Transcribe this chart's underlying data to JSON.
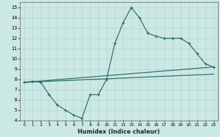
{
  "xlabel": "Humidex (Indice chaleur)",
  "bg_color": "#cce8e4",
  "line_color": "#2a6b65",
  "grid_color": "#b0d8d4",
  "xlim": [
    -0.5,
    23.5
  ],
  "ylim": [
    4,
    15.5
  ],
  "xticks": [
    0,
    1,
    2,
    3,
    4,
    5,
    6,
    7,
    8,
    9,
    10,
    11,
    12,
    13,
    14,
    15,
    16,
    17,
    18,
    19,
    20,
    21,
    22,
    23
  ],
  "yticks": [
    4,
    5,
    6,
    7,
    8,
    9,
    10,
    11,
    12,
    13,
    14,
    15
  ],
  "series1": [
    [
      0,
      7.7
    ],
    [
      1,
      7.8
    ],
    [
      2,
      7.7
    ],
    [
      3,
      6.5
    ],
    [
      4,
      5.5
    ],
    [
      5,
      5.0
    ],
    [
      6,
      4.5
    ],
    [
      7,
      4.2
    ],
    [
      8,
      6.5
    ],
    [
      9,
      6.5
    ],
    [
      10,
      8.0
    ],
    [
      11,
      11.5
    ],
    [
      12,
      13.5
    ],
    [
      13,
      15.0
    ],
    [
      14,
      14.0
    ],
    [
      15,
      12.5
    ],
    [
      16,
      12.2
    ],
    [
      17,
      12.0
    ],
    [
      18,
      12.0
    ],
    [
      19,
      12.0
    ],
    [
      20,
      11.5
    ],
    [
      21,
      10.5
    ],
    [
      22,
      9.5
    ],
    [
      23,
      9.2
    ]
  ],
  "series2": [
    [
      0,
      7.7
    ],
    [
      23,
      9.2
    ]
  ],
  "series3": [
    [
      0,
      7.7
    ],
    [
      23,
      8.5
    ]
  ]
}
